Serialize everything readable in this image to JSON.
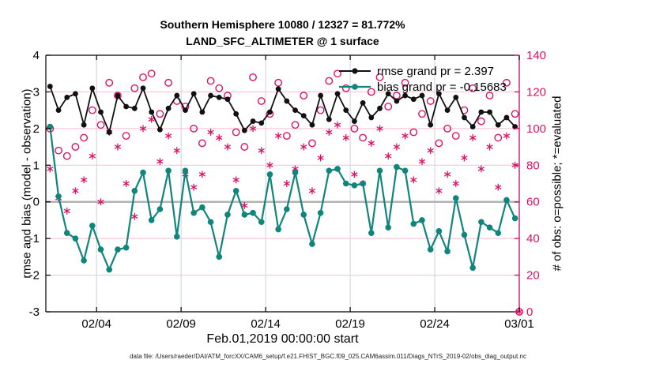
{
  "header": {
    "title_line1": "Southern Hemisphere 10080 / 12327 = 81.772%",
    "title_line2": "LAND_SFC_ALTIMETER @ 1 surface"
  },
  "legend": {
    "rmse_label": "rmse grand pr = 2.397",
    "bias_label": "bias grand pr = -0.15683",
    "text_color": "#2538d8"
  },
  "footer": {
    "data_file": "data file: /Users/raeder/DAI/ATM_forcXX/CAM6_setup/f.e21.FHIST_BGC.f09_025.CAM6assim.011/Diags_NTrS_2019-02/obs_diag_output.nc"
  },
  "colors": {
    "rmse": "#111111",
    "bias": "#0f857b",
    "obs": "#dd1166",
    "grid_vertical": "#ccd3dd",
    "grid_horizontal": "#f3bfd2",
    "zero_line": "#b3b3b3",
    "axis_box": "#000000"
  },
  "chart_data": {
    "type": "line",
    "title": "Southern Hemisphere 10080 / 12327 = 81.772% | LAND_SFC_ALTIMETER @ 1 surface",
    "xlabel": "Feb.01,2019 00:00:00 start",
    "ylabel_left": "rmse and bias (model - observation)",
    "ylabel_right": "# of obs: o=possible; *=evaluated",
    "x_axis": {
      "range_days": [
        0,
        28
      ],
      "tick_days": [
        3,
        8,
        13,
        18,
        23,
        28
      ],
      "tick_labels": [
        "02/04",
        "02/09",
        "02/14",
        "02/19",
        "02/24",
        "03/01"
      ]
    },
    "y_left": {
      "range": [
        -3,
        4
      ],
      "ticks": [
        -3,
        -2,
        -1,
        0,
        1,
        2,
        3,
        4
      ]
    },
    "y_right": {
      "range": [
        0,
        140
      ],
      "ticks": [
        0,
        20,
        40,
        60,
        80,
        100,
        120,
        140
      ]
    },
    "grand_stats": {
      "rmse": 2.397,
      "bias": -0.15683
    },
    "series": [
      {
        "name": "rmse",
        "x_days": [
          0.25,
          0.75,
          1.25,
          1.75,
          2.25,
          2.75,
          3.25,
          3.75,
          4.25,
          4.75,
          5.25,
          5.75,
          6.25,
          6.75,
          7.25,
          7.75,
          8.25,
          8.75,
          9.25,
          9.75,
          10.25,
          10.75,
          11.25,
          11.75,
          12.25,
          12.75,
          13.25,
          13.75,
          14.25,
          14.75,
          15.25,
          15.75,
          16.25,
          16.75,
          17.25,
          17.75,
          18.25,
          18.75,
          19.25,
          19.75,
          20.25,
          20.75,
          21.25,
          21.75,
          22.25,
          22.75,
          23.25,
          23.75,
          24.25,
          24.75,
          25.25,
          25.75,
          26.25,
          26.75,
          27.25,
          27.75
        ],
        "values": [
          3.15,
          2.5,
          2.85,
          2.95,
          2.1,
          3.1,
          2.45,
          1.9,
          2.9,
          2.6,
          2.55,
          3.1,
          2.45,
          1.97,
          2.55,
          2.9,
          2.5,
          2.95,
          2.45,
          2.9,
          2.85,
          2.8,
          2.4,
          1.95,
          2.2,
          2.15,
          2.45,
          3.08,
          2.75,
          2.5,
          2.35,
          2.1,
          2.9,
          2.25,
          2.95,
          2.5,
          2.2,
          2.7,
          2.3,
          2.55,
          2.95,
          2.75,
          2.9,
          2.8,
          2.9,
          2.1,
          2.95,
          2.5,
          2.85,
          2.3,
          2.05,
          2.45,
          2.45,
          2.1,
          2.3,
          2.05
        ]
      },
      {
        "name": "bias",
        "x_days": [
          0.25,
          0.75,
          1.25,
          1.75,
          2.25,
          2.75,
          3.25,
          3.75,
          4.25,
          4.75,
          5.25,
          5.75,
          6.25,
          6.75,
          7.25,
          7.75,
          8.25,
          8.75,
          9.25,
          9.75,
          10.25,
          10.75,
          11.25,
          11.75,
          12.25,
          12.75,
          13.25,
          13.75,
          14.25,
          14.75,
          15.25,
          15.75,
          16.25,
          16.75,
          17.25,
          17.75,
          18.25,
          18.75,
          19.25,
          19.75,
          20.25,
          20.75,
          21.25,
          21.75,
          22.25,
          22.75,
          23.25,
          23.75,
          24.25,
          24.75,
          25.25,
          25.75,
          26.25,
          26.75,
          27.25,
          27.75
        ],
        "values": [
          2.05,
          0.15,
          -0.85,
          -1.0,
          -1.6,
          -0.65,
          -1.3,
          -1.85,
          -1.3,
          -1.25,
          0.3,
          0.8,
          -0.5,
          -0.2,
          0.85,
          -0.95,
          0.85,
          -0.3,
          -0.15,
          -0.55,
          -1.5,
          -0.35,
          0.3,
          -0.35,
          -0.3,
          -0.55,
          0.75,
          -0.75,
          -0.2,
          0.8,
          -0.35,
          -1.15,
          -0.3,
          0.85,
          0.9,
          0.5,
          0.45,
          0.5,
          -0.85,
          0.85,
          -0.7,
          0.95,
          0.85,
          -0.6,
          -0.5,
          -1.3,
          -0.8,
          -1.35,
          0.1,
          -0.9,
          -1.8,
          -0.55,
          -0.7,
          -0.85,
          0.05,
          -0.45
        ]
      }
    ],
    "scatter": [
      {
        "name": "possible",
        "marker": "circle",
        "x_days": [
          0.25,
          0.75,
          1.25,
          1.75,
          2.25,
          2.75,
          3.25,
          3.75,
          4.25,
          4.75,
          5.25,
          5.75,
          6.25,
          6.75,
          7.25,
          7.75,
          8.25,
          8.75,
          9.25,
          9.75,
          10.25,
          10.75,
          11.25,
          11.75,
          12.25,
          12.75,
          13.25,
          13.75,
          14.25,
          14.75,
          15.25,
          15.75,
          16.25,
          16.75,
          17.25,
          17.75,
          18.25,
          18.75,
          19.25,
          19.75,
          20.25,
          20.75,
          21.25,
          21.75,
          22.25,
          22.75,
          23.25,
          23.75,
          24.25,
          24.75,
          25.25,
          25.75,
          26.25,
          26.75,
          27.25,
          27.75,
          28.0
        ],
        "values": [
          100,
          88,
          85,
          90,
          95,
          110,
          102,
          125,
          118,
          96,
          122,
          128,
          130,
          108,
          125,
          115,
          112,
          100,
          92,
          126,
          122,
          118,
          98,
          90,
          128,
          115,
          108,
          125,
          96,
          102,
          118,
          92,
          110,
          126,
          130,
          122,
          100,
          95,
          120,
          128,
          112,
          118,
          125,
          98,
          108,
          115,
          92,
          100,
          96,
          110,
          122,
          104,
          118,
          95,
          125,
          108,
          0
        ]
      },
      {
        "name": "evaluated",
        "marker": "asterisk",
        "x_days": [
          0.25,
          0.75,
          1.25,
          1.75,
          2.25,
          2.75,
          3.25,
          3.75,
          4.25,
          4.75,
          5.25,
          5.75,
          6.25,
          6.75,
          7.25,
          7.75,
          8.25,
          8.75,
          9.25,
          9.75,
          10.25,
          10.75,
          11.25,
          11.75,
          12.25,
          12.75,
          13.25,
          13.75,
          14.25,
          14.75,
          15.25,
          15.75,
          16.25,
          16.75,
          17.25,
          17.75,
          18.25,
          18.75,
          19.25,
          19.75,
          20.25,
          20.75,
          21.25,
          21.75,
          22.25,
          22.75,
          23.25,
          23.75,
          24.25,
          24.75,
          25.25,
          25.75,
          26.25,
          26.75,
          27.25,
          27.75,
          28.0
        ],
        "values": [
          78,
          62,
          55,
          66,
          72,
          85,
          60,
          98,
          90,
          70,
          52,
          100,
          105,
          82,
          96,
          88,
          75,
          68,
          75,
          98,
          95,
          90,
          72,
          58,
          100,
          88,
          80,
          96,
          70,
          78,
          90,
          66,
          84,
          98,
          102,
          95,
          75,
          70,
          92,
          100,
          85,
          90,
          96,
          72,
          82,
          88,
          66,
          75,
          70,
          84,
          95,
          78,
          90,
          68,
          96,
          80,
          0
        ]
      }
    ]
  }
}
